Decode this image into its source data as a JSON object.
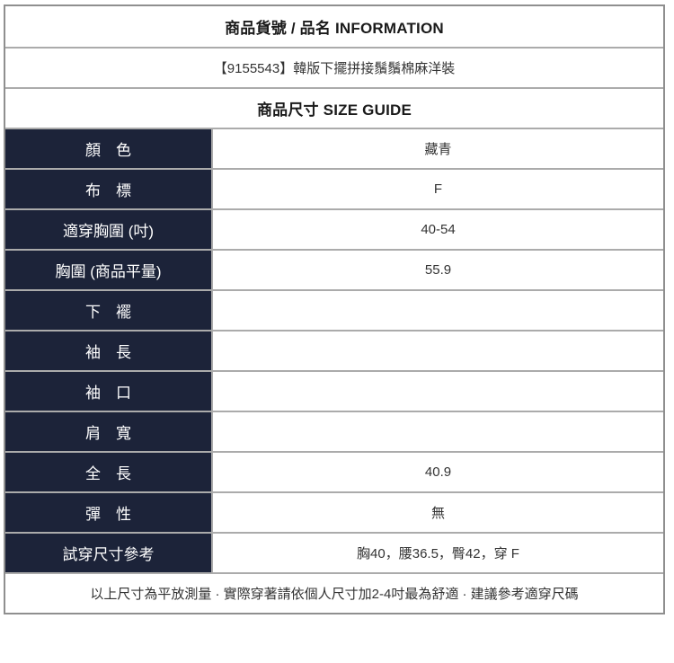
{
  "header": {
    "info_title": "商品貨號 / 品名 INFORMATION",
    "product_name": "【9155543】韓版下擺拼接鬚鬚棉麻洋裝",
    "size_guide_title": "商品尺寸 SIZE GUIDE"
  },
  "rows": [
    {
      "label": "顏　色",
      "value": "藏青"
    },
    {
      "label": "布　標",
      "value": "F"
    },
    {
      "label": "適穿胸圍 (吋)",
      "value": "40-54"
    },
    {
      "label": "胸圍 (商品平量)",
      "value": "55.9"
    },
    {
      "label": "下　襬",
      "value": ""
    },
    {
      "label": "袖　長",
      "value": ""
    },
    {
      "label": "袖　口",
      "value": ""
    },
    {
      "label": "肩　寬",
      "value": ""
    },
    {
      "label": "全　長",
      "value": "40.9"
    },
    {
      "label": "彈　性",
      "value": "無"
    },
    {
      "label": "試穿尺寸參考",
      "value": "胸40，腰36.5，臀42，穿 F"
    }
  ],
  "footer": {
    "note": "以上尺寸為平放測量 · 實際穿著請依個人尺寸加2-4吋最為舒適 · 建議參考適穿尺碼"
  },
  "colors": {
    "label_bg": "#1c2339",
    "label_text": "#ffffff",
    "header_text": "#1a1a1a",
    "value_text": "#333333",
    "inner_border": "#ababab",
    "outer_border": "#8f8f8f"
  }
}
